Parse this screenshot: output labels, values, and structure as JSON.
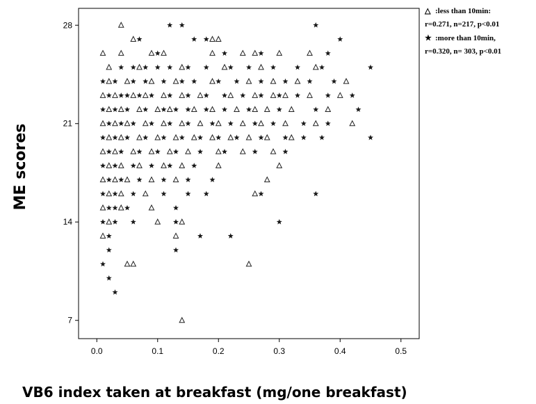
{
  "chart_data": {
    "type": "scatter",
    "title": "",
    "xlabel": "VB6 index taken at breakfast (mg/one breakfast)",
    "ylabel": "ME scores",
    "xlim": [
      -0.03,
      0.53
    ],
    "ylim": [
      5.7,
      29.2
    ],
    "x_ticks": [
      "0.0",
      "0.1",
      "0.2",
      "0.3",
      "0.4",
      "0.5"
    ],
    "y_ticks": [
      "7",
      "14",
      "21",
      "28"
    ],
    "legend": {
      "position": "top-right, outside plot",
      "entries": [
        {
          "marker": "△",
          "line1": ":less than 10min:",
          "line2": "r=0.271, n=217, p<0.01"
        },
        {
          "marker": "★",
          "line1": ":more than 10min,",
          "line2": "r=0.320, n= 303, p<0.01"
        }
      ]
    },
    "series": [
      {
        "name": "less than 10min",
        "marker": "triangle",
        "points": [
          [
            0.04,
            28
          ],
          [
            0.06,
            27
          ],
          [
            0.19,
            27
          ],
          [
            0.2,
            27
          ],
          [
            0.01,
            26
          ],
          [
            0.04,
            26
          ],
          [
            0.09,
            26
          ],
          [
            0.11,
            26
          ],
          [
            0.19,
            26
          ],
          [
            0.24,
            26
          ],
          [
            0.26,
            26
          ],
          [
            0.3,
            26
          ],
          [
            0.35,
            26
          ],
          [
            0.02,
            25
          ],
          [
            0.07,
            25
          ],
          [
            0.14,
            25
          ],
          [
            0.21,
            25
          ],
          [
            0.27,
            25
          ],
          [
            0.36,
            25
          ],
          [
            0.02,
            24
          ],
          [
            0.05,
            24
          ],
          [
            0.09,
            24
          ],
          [
            0.13,
            24
          ],
          [
            0.19,
            24
          ],
          [
            0.25,
            24
          ],
          [
            0.29,
            24
          ],
          [
            0.33,
            24
          ],
          [
            0.41,
            24
          ],
          [
            0.01,
            23
          ],
          [
            0.03,
            23
          ],
          [
            0.06,
            23
          ],
          [
            0.08,
            23
          ],
          [
            0.11,
            23
          ],
          [
            0.14,
            23
          ],
          [
            0.17,
            23
          ],
          [
            0.22,
            23
          ],
          [
            0.26,
            23
          ],
          [
            0.29,
            23
          ],
          [
            0.31,
            23
          ],
          [
            0.35,
            23
          ],
          [
            0.4,
            23
          ],
          [
            0.02,
            22
          ],
          [
            0.04,
            22
          ],
          [
            0.07,
            22
          ],
          [
            0.1,
            22
          ],
          [
            0.12,
            22
          ],
          [
            0.16,
            22
          ],
          [
            0.19,
            22
          ],
          [
            0.23,
            22
          ],
          [
            0.26,
            22
          ],
          [
            0.28,
            22
          ],
          [
            0.32,
            22
          ],
          [
            0.38,
            22
          ],
          [
            0.01,
            21
          ],
          [
            0.03,
            21
          ],
          [
            0.05,
            21
          ],
          [
            0.08,
            21
          ],
          [
            0.11,
            21
          ],
          [
            0.14,
            21
          ],
          [
            0.17,
            21
          ],
          [
            0.2,
            21
          ],
          [
            0.24,
            21
          ],
          [
            0.27,
            21
          ],
          [
            0.31,
            21
          ],
          [
            0.36,
            21
          ],
          [
            0.42,
            21
          ],
          [
            0.02,
            20
          ],
          [
            0.04,
            20
          ],
          [
            0.07,
            20
          ],
          [
            0.1,
            20
          ],
          [
            0.13,
            20
          ],
          [
            0.16,
            20
          ],
          [
            0.19,
            20
          ],
          [
            0.22,
            20
          ],
          [
            0.25,
            20
          ],
          [
            0.28,
            20
          ],
          [
            0.32,
            20
          ],
          [
            0.01,
            19
          ],
          [
            0.03,
            19
          ],
          [
            0.06,
            19
          ],
          [
            0.09,
            19
          ],
          [
            0.12,
            19
          ],
          [
            0.15,
            19
          ],
          [
            0.2,
            19
          ],
          [
            0.24,
            19
          ],
          [
            0.29,
            19
          ],
          [
            0.02,
            18
          ],
          [
            0.04,
            18
          ],
          [
            0.07,
            18
          ],
          [
            0.11,
            18
          ],
          [
            0.14,
            18
          ],
          [
            0.2,
            18
          ],
          [
            0.3,
            18
          ],
          [
            0.01,
            17
          ],
          [
            0.03,
            17
          ],
          [
            0.05,
            17
          ],
          [
            0.09,
            17
          ],
          [
            0.13,
            17
          ],
          [
            0.28,
            17
          ],
          [
            0.02,
            16
          ],
          [
            0.04,
            16
          ],
          [
            0.08,
            16
          ],
          [
            0.26,
            16
          ],
          [
            0.01,
            15
          ],
          [
            0.04,
            15
          ],
          [
            0.09,
            15
          ],
          [
            0.02,
            14
          ],
          [
            0.1,
            14
          ],
          [
            0.14,
            14
          ],
          [
            0.01,
            13
          ],
          [
            0.13,
            13
          ],
          [
            0.05,
            11
          ],
          [
            0.06,
            11
          ],
          [
            0.25,
            11
          ],
          [
            0.14,
            7
          ]
        ]
      },
      {
        "name": "more than 10min",
        "marker": "star",
        "points": [
          [
            0.12,
            28
          ],
          [
            0.14,
            28
          ],
          [
            0.36,
            28
          ],
          [
            0.07,
            27
          ],
          [
            0.16,
            27
          ],
          [
            0.18,
            27
          ],
          [
            0.4,
            27
          ],
          [
            0.1,
            26
          ],
          [
            0.21,
            26
          ],
          [
            0.27,
            26
          ],
          [
            0.38,
            26
          ],
          [
            0.04,
            25
          ],
          [
            0.06,
            25
          ],
          [
            0.08,
            25
          ],
          [
            0.1,
            25
          ],
          [
            0.12,
            25
          ],
          [
            0.15,
            25
          ],
          [
            0.18,
            25
          ],
          [
            0.22,
            25
          ],
          [
            0.25,
            25
          ],
          [
            0.29,
            25
          ],
          [
            0.33,
            25
          ],
          [
            0.37,
            25
          ],
          [
            0.45,
            25
          ],
          [
            0.01,
            24
          ],
          [
            0.03,
            24
          ],
          [
            0.06,
            24
          ],
          [
            0.08,
            24
          ],
          [
            0.11,
            24
          ],
          [
            0.14,
            24
          ],
          [
            0.16,
            24
          ],
          [
            0.2,
            24
          ],
          [
            0.23,
            24
          ],
          [
            0.27,
            24
          ],
          [
            0.31,
            24
          ],
          [
            0.35,
            24
          ],
          [
            0.39,
            24
          ],
          [
            0.02,
            23
          ],
          [
            0.04,
            23
          ],
          [
            0.05,
            23
          ],
          [
            0.07,
            23
          ],
          [
            0.09,
            23
          ],
          [
            0.12,
            23
          ],
          [
            0.15,
            23
          ],
          [
            0.18,
            23
          ],
          [
            0.21,
            23
          ],
          [
            0.24,
            23
          ],
          [
            0.27,
            23
          ],
          [
            0.3,
            23
          ],
          [
            0.33,
            23
          ],
          [
            0.38,
            23
          ],
          [
            0.42,
            23
          ],
          [
            0.01,
            22
          ],
          [
            0.03,
            22
          ],
          [
            0.05,
            22
          ],
          [
            0.08,
            22
          ],
          [
            0.11,
            22
          ],
          [
            0.13,
            22
          ],
          [
            0.15,
            22
          ],
          [
            0.18,
            22
          ],
          [
            0.21,
            22
          ],
          [
            0.25,
            22
          ],
          [
            0.3,
            22
          ],
          [
            0.36,
            22
          ],
          [
            0.43,
            22
          ],
          [
            0.02,
            21
          ],
          [
            0.04,
            21
          ],
          [
            0.06,
            21
          ],
          [
            0.09,
            21
          ],
          [
            0.12,
            21
          ],
          [
            0.15,
            21
          ],
          [
            0.19,
            21
          ],
          [
            0.22,
            21
          ],
          [
            0.26,
            21
          ],
          [
            0.29,
            21
          ],
          [
            0.34,
            21
          ],
          [
            0.38,
            21
          ],
          [
            0.01,
            20
          ],
          [
            0.03,
            20
          ],
          [
            0.05,
            20
          ],
          [
            0.08,
            20
          ],
          [
            0.11,
            20
          ],
          [
            0.14,
            20
          ],
          [
            0.17,
            20
          ],
          [
            0.2,
            20
          ],
          [
            0.23,
            20
          ],
          [
            0.27,
            20
          ],
          [
            0.31,
            20
          ],
          [
            0.34,
            20
          ],
          [
            0.37,
            20
          ],
          [
            0.45,
            20
          ],
          [
            0.02,
            19
          ],
          [
            0.04,
            19
          ],
          [
            0.07,
            19
          ],
          [
            0.1,
            19
          ],
          [
            0.13,
            19
          ],
          [
            0.17,
            19
          ],
          [
            0.21,
            19
          ],
          [
            0.26,
            19
          ],
          [
            0.31,
            19
          ],
          [
            0.01,
            18
          ],
          [
            0.03,
            18
          ],
          [
            0.06,
            18
          ],
          [
            0.09,
            18
          ],
          [
            0.12,
            18
          ],
          [
            0.16,
            18
          ],
          [
            0.02,
            17
          ],
          [
            0.04,
            17
          ],
          [
            0.07,
            17
          ],
          [
            0.11,
            17
          ],
          [
            0.15,
            17
          ],
          [
            0.19,
            17
          ],
          [
            0.01,
            16
          ],
          [
            0.03,
            16
          ],
          [
            0.06,
            16
          ],
          [
            0.11,
            16
          ],
          [
            0.15,
            16
          ],
          [
            0.18,
            16
          ],
          [
            0.27,
            16
          ],
          [
            0.36,
            16
          ],
          [
            0.02,
            15
          ],
          [
            0.03,
            15
          ],
          [
            0.05,
            15
          ],
          [
            0.13,
            15
          ],
          [
            0.01,
            14
          ],
          [
            0.03,
            14
          ],
          [
            0.06,
            14
          ],
          [
            0.13,
            14
          ],
          [
            0.3,
            14
          ],
          [
            0.02,
            13
          ],
          [
            0.17,
            13
          ],
          [
            0.22,
            13
          ],
          [
            0.02,
            12
          ],
          [
            0.13,
            12
          ],
          [
            0.01,
            11
          ],
          [
            0.02,
            10
          ],
          [
            0.03,
            9
          ]
        ]
      }
    ]
  }
}
